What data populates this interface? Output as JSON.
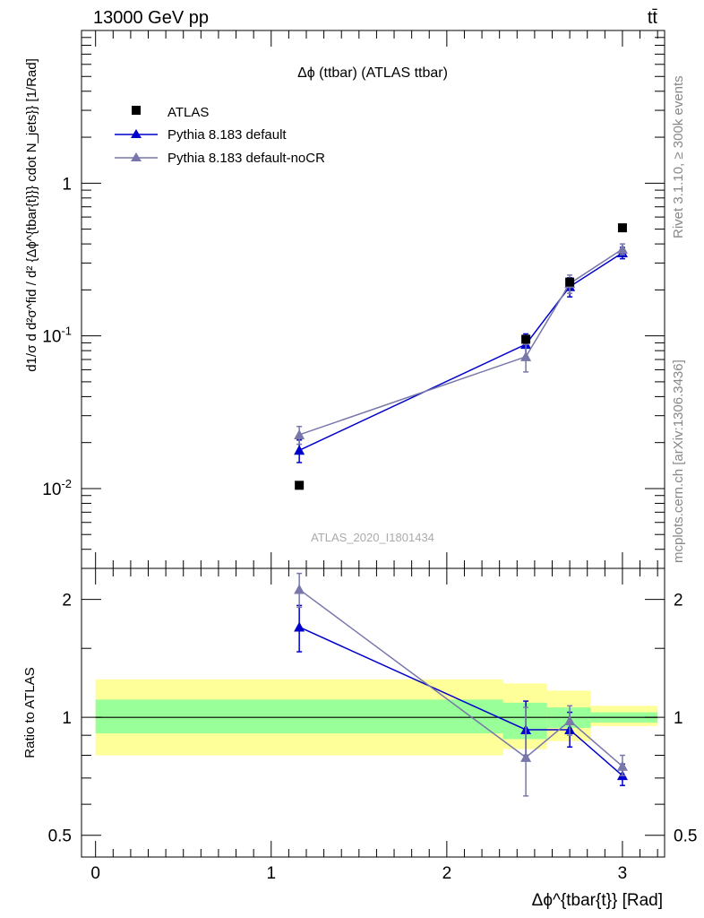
{
  "header": {
    "energy_label": "13000 GeV pp",
    "process_label": "tt̄",
    "side_top": "Rivet 3.1.10, ≥ 300k events",
    "side_bottom": "mcplots.cern.ch [arXiv:1306.3436]"
  },
  "chart_data": {
    "type": "line",
    "title": "Δϕ (ttbar) (ATLAS ttbar)",
    "watermark": "ATLAS_2020_I1801434",
    "xlabel": "Δϕ^{tbar{t}} [Rad]",
    "ylabel": "d1/σ d d²σ^fid / d² {Δϕ^{tbar{t}}} cdot N_jets}} [1/Rad]",
    "xlim": [
      -0.08,
      3.24
    ],
    "ylim_log": [
      0.003,
      10
    ],
    "x_ticks": [
      "0",
      "1",
      "2",
      "3"
    ],
    "y_ticks": [
      "10^-2",
      "10^-1",
      "1"
    ],
    "legend": [
      "ATLAS",
      "Pythia 8.183 default",
      "Pythia 8.183 default-noCR"
    ],
    "data": {
      "name": "ATLAS",
      "color": "#000000",
      "x": [
        1.16,
        2.45,
        2.7,
        3.0
      ],
      "y": [
        0.0105,
        0.095,
        0.225,
        0.51
      ]
    },
    "series": [
      {
        "name": "Pythia 8.183 default",
        "color": "#0000cc",
        "x": [
          1.16,
          2.45,
          2.7,
          3.0
        ],
        "y": [
          0.0178,
          0.088,
          0.21,
          0.35
        ],
        "err": [
          0.003,
          0.015,
          0.03,
          0.03
        ]
      },
      {
        "name": "Pythia 8.183 default-noCR",
        "color": "#7777aa",
        "x": [
          1.16,
          2.45,
          2.7,
          3.0
        ],
        "y": [
          0.0225,
          0.073,
          0.22,
          0.37
        ],
        "err": [
          0.003,
          0.015,
          0.03,
          0.03
        ]
      }
    ],
    "ratio": {
      "ylabel": "Ratio to ATLAS",
      "ylim": [
        0.44,
        2.4
      ],
      "y_ticks": [
        "0.5",
        "1",
        "2"
      ],
      "bands": [
        {
          "x0": 0.0,
          "x1": 2.32,
          "inner": [
            0.91,
            1.11
          ],
          "outer": [
            0.8,
            1.25
          ]
        },
        {
          "x0": 2.32,
          "x1": 2.57,
          "inner": [
            0.88,
            1.09
          ],
          "outer": [
            0.83,
            1.22
          ]
        },
        {
          "x0": 2.57,
          "x1": 2.82,
          "inner": [
            0.94,
            1.06
          ],
          "outer": [
            0.87,
            1.17
          ]
        },
        {
          "x0": 2.82,
          "x1": 3.2,
          "inner": [
            0.97,
            1.03
          ],
          "outer": [
            0.95,
            1.07
          ]
        }
      ],
      "series": [
        {
          "name": "Pythia 8.183 default",
          "color": "#0000cc",
          "x": [
            1.16,
            2.45,
            2.7,
            3.0
          ],
          "y": [
            1.7,
            0.93,
            0.93,
            0.71
          ],
          "err_lo": [
            0.23,
            0.13,
            0.09,
            0.04
          ],
          "err_hi": [
            0.23,
            0.17,
            0.1,
            0.05
          ]
        },
        {
          "name": "Pythia 8.183 default-noCR",
          "color": "#7777aa",
          "x": [
            1.16,
            2.45,
            2.7,
            3.0
          ],
          "y": [
            2.12,
            0.79,
            0.98,
            0.75
          ],
          "err_lo": [
            0.21,
            0.16,
            0.08,
            0.04
          ],
          "err_hi": [
            0.21,
            0.27,
            0.09,
            0.05
          ]
        }
      ]
    }
  }
}
